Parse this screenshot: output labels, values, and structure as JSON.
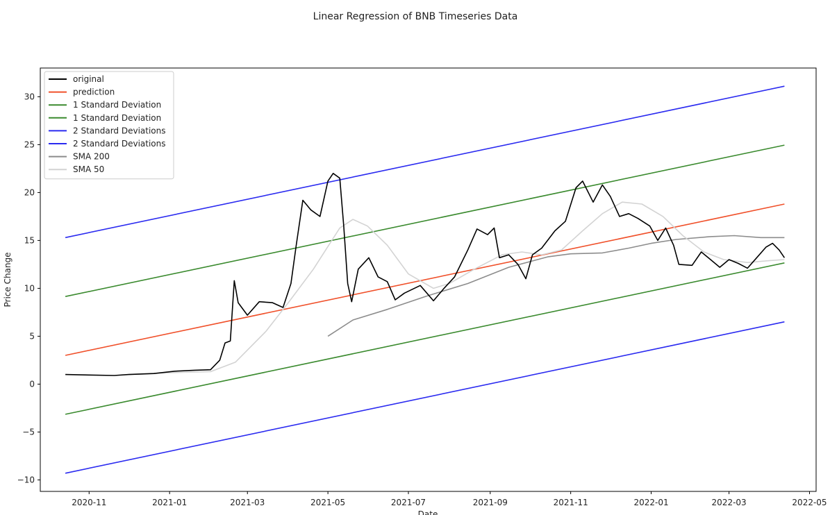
{
  "chart_data": {
    "type": "line",
    "title": "Linear Regression of BNB Timeseries Data",
    "xlabel": "Date",
    "ylabel": "Price Change",
    "xlim": [
      "2020-09-25",
      "2022-05-06"
    ],
    "ylim": [
      -11.2,
      33.0
    ],
    "x_ticks": [
      "2020-11",
      "2021-01",
      "2021-03",
      "2021-05",
      "2021-07",
      "2021-09",
      "2021-11",
      "2022-01",
      "2022-03",
      "2022-05"
    ],
    "y_ticks": [
      -10,
      -5,
      0,
      5,
      10,
      15,
      20,
      25,
      30
    ],
    "y_tick_labels": [
      "−10",
      "−5",
      "0",
      "5",
      "10",
      "15",
      "20",
      "25",
      "30"
    ],
    "grid": false,
    "legend_position": "upper-left",
    "series": [
      {
        "name": "original",
        "color": "#000000",
        "points": [
          [
            "2020-10-14",
            1.0
          ],
          [
            "2020-11-01",
            0.95
          ],
          [
            "2020-11-20",
            0.9
          ],
          [
            "2020-12-01",
            1.0
          ],
          [
            "2020-12-20",
            1.1
          ],
          [
            "2021-01-05",
            1.35
          ],
          [
            "2021-01-20",
            1.45
          ],
          [
            "2021-02-01",
            1.5
          ],
          [
            "2021-02-08",
            2.5
          ],
          [
            "2021-02-12",
            4.3
          ],
          [
            "2021-02-16",
            4.5
          ],
          [
            "2021-02-19",
            10.8
          ],
          [
            "2021-02-22",
            8.5
          ],
          [
            "2021-03-01",
            7.2
          ],
          [
            "2021-03-10",
            8.6
          ],
          [
            "2021-03-20",
            8.5
          ],
          [
            "2021-03-28",
            8.0
          ],
          [
            "2021-04-03",
            10.5
          ],
          [
            "2021-04-07",
            14.5
          ],
          [
            "2021-04-12",
            19.2
          ],
          [
            "2021-04-18",
            18.2
          ],
          [
            "2021-04-25",
            17.5
          ],
          [
            "2021-05-01",
            21.2
          ],
          [
            "2021-05-05",
            22.0
          ],
          [
            "2021-05-10",
            21.5
          ],
          [
            "2021-05-13",
            16.5
          ],
          [
            "2021-05-16",
            10.5
          ],
          [
            "2021-05-19",
            8.6
          ],
          [
            "2021-05-24",
            12.0
          ],
          [
            "2021-06-01",
            13.2
          ],
          [
            "2021-06-08",
            11.2
          ],
          [
            "2021-06-15",
            10.7
          ],
          [
            "2021-06-21",
            8.8
          ],
          [
            "2021-06-28",
            9.5
          ],
          [
            "2021-07-10",
            10.3
          ],
          [
            "2021-07-20",
            8.7
          ],
          [
            "2021-07-28",
            10.0
          ],
          [
            "2021-08-05",
            11.2
          ],
          [
            "2021-08-15",
            14.0
          ],
          [
            "2021-08-22",
            16.2
          ],
          [
            "2021-08-30",
            15.6
          ],
          [
            "2021-09-04",
            16.3
          ],
          [
            "2021-09-08",
            13.2
          ],
          [
            "2021-09-15",
            13.5
          ],
          [
            "2021-09-22",
            12.5
          ],
          [
            "2021-09-28",
            11.0
          ],
          [
            "2021-10-03",
            13.5
          ],
          [
            "2021-10-10",
            14.2
          ],
          [
            "2021-10-20",
            16.0
          ],
          [
            "2021-10-28",
            17.0
          ],
          [
            "2021-11-05",
            20.5
          ],
          [
            "2021-11-10",
            21.2
          ],
          [
            "2021-11-18",
            19.0
          ],
          [
            "2021-11-25",
            20.8
          ],
          [
            "2021-12-01",
            19.6
          ],
          [
            "2021-12-08",
            17.5
          ],
          [
            "2021-12-15",
            17.8
          ],
          [
            "2021-12-22",
            17.3
          ],
          [
            "2021-12-31",
            16.5
          ],
          [
            "2022-01-06",
            15.0
          ],
          [
            "2022-01-12",
            16.3
          ],
          [
            "2022-01-18",
            14.5
          ],
          [
            "2022-01-22",
            12.5
          ],
          [
            "2022-02-01",
            12.4
          ],
          [
            "2022-02-08",
            13.8
          ],
          [
            "2022-02-15",
            13.0
          ],
          [
            "2022-02-22",
            12.2
          ],
          [
            "2022-03-01",
            13.0
          ],
          [
            "2022-03-08",
            12.6
          ],
          [
            "2022-03-15",
            12.1
          ],
          [
            "2022-03-22",
            13.2
          ],
          [
            "2022-03-29",
            14.3
          ],
          [
            "2022-04-03",
            14.7
          ],
          [
            "2022-04-08",
            14.0
          ],
          [
            "2022-04-12",
            13.2
          ]
        ]
      },
      {
        "name": "prediction",
        "color": "#f0502a",
        "points": [
          [
            "2020-10-14",
            3.0
          ],
          [
            "2022-04-12",
            18.8
          ]
        ]
      },
      {
        "name": "1 Standard Deviation",
        "color": "#3a8a2e",
        "points": [
          [
            "2020-10-14",
            9.15
          ],
          [
            "2022-04-12",
            24.95
          ]
        ]
      },
      {
        "name": "1 Standard Deviation",
        "color": "#3a8a2e",
        "points": [
          [
            "2020-10-14",
            -3.15
          ],
          [
            "2022-04-12",
            12.65
          ]
        ]
      },
      {
        "name": "2 Standard Deviations",
        "color": "#2a2af0",
        "points": [
          [
            "2020-10-14",
            15.3
          ],
          [
            "2022-04-12",
            31.1
          ]
        ]
      },
      {
        "name": "2 Standard Deviations",
        "color": "#2a2af0",
        "points": [
          [
            "2020-10-14",
            -9.3
          ],
          [
            "2022-04-12",
            6.5
          ]
        ]
      },
      {
        "name": "SMA 200",
        "color": "#8c8c8c",
        "points": [
          [
            "2021-05-01",
            5.0
          ],
          [
            "2021-05-20",
            6.7
          ],
          [
            "2021-06-15",
            7.8
          ],
          [
            "2021-07-15",
            9.2
          ],
          [
            "2021-08-15",
            10.5
          ],
          [
            "2021-09-15",
            12.2
          ],
          [
            "2021-10-15",
            13.3
          ],
          [
            "2021-11-01",
            13.6
          ],
          [
            "2021-11-25",
            13.7
          ],
          [
            "2021-12-15",
            14.2
          ],
          [
            "2022-01-01",
            14.7
          ],
          [
            "2022-01-20",
            15.1
          ],
          [
            "2022-02-15",
            15.4
          ],
          [
            "2022-03-05",
            15.5
          ],
          [
            "2022-03-25",
            15.3
          ],
          [
            "2022-04-12",
            15.3
          ]
        ]
      },
      {
        "name": "SMA 50",
        "color": "#d3d3d3",
        "points": [
          [
            "2020-12-01",
            1.0
          ],
          [
            "2021-01-01",
            1.2
          ],
          [
            "2021-02-01",
            1.3
          ],
          [
            "2021-02-20",
            2.3
          ],
          [
            "2021-03-15",
            5.5
          ],
          [
            "2021-04-01",
            8.5
          ],
          [
            "2021-04-20",
            12.0
          ],
          [
            "2021-05-10",
            16.3
          ],
          [
            "2021-05-20",
            17.2
          ],
          [
            "2021-05-31",
            16.5
          ],
          [
            "2021-06-15",
            14.5
          ],
          [
            "2021-07-01",
            11.5
          ],
          [
            "2021-07-20",
            10.0
          ],
          [
            "2021-08-01",
            10.5
          ],
          [
            "2021-08-20",
            12.0
          ],
          [
            "2021-09-10",
            13.5
          ],
          [
            "2021-09-25",
            13.8
          ],
          [
            "2021-10-10",
            13.5
          ],
          [
            "2021-10-25",
            14.0
          ],
          [
            "2021-11-10",
            16.0
          ],
          [
            "2021-11-25",
            17.8
          ],
          [
            "2021-12-10",
            19.0
          ],
          [
            "2021-12-25",
            18.8
          ],
          [
            "2022-01-10",
            17.5
          ],
          [
            "2022-01-25",
            15.5
          ],
          [
            "2022-02-10",
            13.8
          ],
          [
            "2022-02-25",
            13.0
          ],
          [
            "2022-03-15",
            12.7
          ],
          [
            "2022-04-01",
            12.9
          ],
          [
            "2022-04-12",
            13.0
          ]
        ]
      }
    ]
  }
}
